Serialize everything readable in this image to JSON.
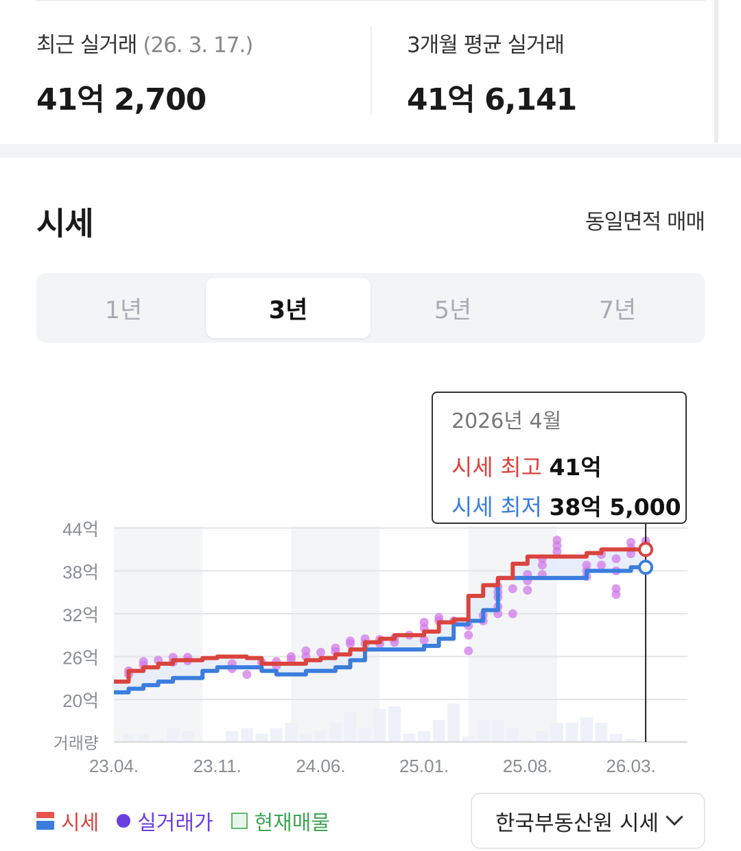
{
  "summary": {
    "recent": {
      "label": "최근 실거래",
      "date": "(26. 3. 17.)",
      "value": "41억 2,700"
    },
    "avg3m": {
      "label": "3개월 평균 실거래",
      "value": "41억 6,141"
    }
  },
  "section": {
    "title": "시세",
    "filter": "동일면적 매매"
  },
  "period_tabs": [
    {
      "label": "1년",
      "active": false
    },
    {
      "label": "3년",
      "active": true
    },
    {
      "label": "5년",
      "active": false
    },
    {
      "label": "7년",
      "active": false
    }
  ],
  "tooltip": {
    "date": "2026년 4월",
    "high_label": "시세 최고",
    "high_value": "41억",
    "low_label": "시세 최저",
    "low_value": "38억 5,000"
  },
  "legend": {
    "price": "시세",
    "trade": "실거래가",
    "listing": "현재매물"
  },
  "source_select": {
    "label": "한국부동산원 시세"
  },
  "colors": {
    "high": "#d9443e",
    "low": "#3b7ddd",
    "trade": "#d27ae8",
    "band": "#e4ecf9",
    "volume": "#eef1f8"
  },
  "chart_data": {
    "type": "line",
    "ylabels": [
      "44억",
      "38억",
      "32억",
      "26억",
      "20억"
    ],
    "y_ticks": [
      44,
      38,
      32,
      26,
      20
    ],
    "ylim": [
      20,
      44
    ],
    "volume_label": "거래량",
    "xlabels": [
      "23.04.",
      "23.11.",
      "24.06.",
      "25.01.",
      "25.08.",
      "26.03."
    ],
    "x_ticks": [
      "2023-04",
      "2023-11",
      "2024-06",
      "2025-01",
      "2025-08",
      "2026-03"
    ],
    "months": [
      "2023-04",
      "2023-05",
      "2023-06",
      "2023-07",
      "2023-08",
      "2023-09",
      "2023-10",
      "2023-11",
      "2023-12",
      "2024-01",
      "2024-02",
      "2024-03",
      "2024-04",
      "2024-05",
      "2024-06",
      "2024-07",
      "2024-08",
      "2024-09",
      "2024-10",
      "2024-11",
      "2024-12",
      "2025-01",
      "2025-02",
      "2025-03",
      "2025-04",
      "2025-05",
      "2025-06",
      "2025-07",
      "2025-08",
      "2025-09",
      "2025-10",
      "2025-11",
      "2025-12",
      "2026-01",
      "2026-02",
      "2026-03",
      "2026-04"
    ],
    "series": [
      {
        "name": "시세 최고",
        "values": [
          22.5,
          24,
          24.5,
          25,
          25.5,
          25.5,
          25.8,
          26,
          26,
          25.8,
          25,
          25,
          25,
          25.5,
          25.8,
          26.3,
          27,
          28,
          28.5,
          29,
          29,
          29.5,
          30.8,
          31.2,
          34.5,
          36,
          37,
          39,
          40,
          40,
          40,
          40,
          40.5,
          41,
          41,
          41,
          41
        ]
      },
      {
        "name": "시세 최저",
        "values": [
          21,
          21.5,
          22,
          22.5,
          23,
          23,
          24,
          24.5,
          24.5,
          24.5,
          24,
          23.5,
          23.5,
          24,
          24,
          24.5,
          25.5,
          27,
          27,
          27,
          27,
          27.5,
          28.5,
          30.5,
          31,
          32.5,
          37,
          37,
          37,
          37,
          37,
          37,
          38,
          38,
          38,
          38.5,
          38.5
        ]
      }
    ],
    "trades": [
      {
        "x": "2023-05",
        "y": 24
      },
      {
        "x": "2023-05",
        "y": 23.5
      },
      {
        "x": "2023-06",
        "y": 25.3
      },
      {
        "x": "2023-06",
        "y": 24.8
      },
      {
        "x": "2023-07",
        "y": 25.5
      },
      {
        "x": "2023-08",
        "y": 25.9
      },
      {
        "x": "2023-08",
        "y": 25.2
      },
      {
        "x": "2023-09",
        "y": 25.4
      },
      {
        "x": "2023-09",
        "y": 25.9
      },
      {
        "x": "2023-12",
        "y": 25
      },
      {
        "x": "2023-12",
        "y": 24.3
      },
      {
        "x": "2024-01",
        "y": 23.5
      },
      {
        "x": "2024-02",
        "y": 25.2
      },
      {
        "x": "2024-03",
        "y": 24.7
      },
      {
        "x": "2024-03",
        "y": 25.3
      },
      {
        "x": "2024-04",
        "y": 25.6
      },
      {
        "x": "2024-04",
        "y": 26
      },
      {
        "x": "2024-05",
        "y": 26.8
      },
      {
        "x": "2024-05",
        "y": 26
      },
      {
        "x": "2024-06",
        "y": 26.6
      },
      {
        "x": "2024-07",
        "y": 27.2
      },
      {
        "x": "2024-07",
        "y": 26.7
      },
      {
        "x": "2024-08",
        "y": 28.2
      },
      {
        "x": "2024-08",
        "y": 27.8
      },
      {
        "x": "2024-09",
        "y": 28.5
      },
      {
        "x": "2024-09",
        "y": 27.8
      },
      {
        "x": "2024-10",
        "y": 28.4
      },
      {
        "x": "2024-10",
        "y": 27.8
      },
      {
        "x": "2024-11",
        "y": 28.6
      },
      {
        "x": "2024-11",
        "y": 28
      },
      {
        "x": "2024-12",
        "y": 29
      },
      {
        "x": "2025-01",
        "y": 30.8
      },
      {
        "x": "2025-01",
        "y": 30
      },
      {
        "x": "2025-01",
        "y": 28.3
      },
      {
        "x": "2025-02",
        "y": 31.5
      },
      {
        "x": "2025-02",
        "y": 31
      },
      {
        "x": "2025-03",
        "y": 31
      },
      {
        "x": "2025-04",
        "y": 30.3
      },
      {
        "x": "2025-04",
        "y": 29
      },
      {
        "x": "2025-04",
        "y": 26.8
      },
      {
        "x": "2025-05",
        "y": 31.8
      },
      {
        "x": "2025-05",
        "y": 31
      },
      {
        "x": "2025-06",
        "y": 35.8
      },
      {
        "x": "2025-06",
        "y": 35
      },
      {
        "x": "2025-06",
        "y": 34.3
      },
      {
        "x": "2025-06",
        "y": 33
      },
      {
        "x": "2025-06",
        "y": 32
      },
      {
        "x": "2025-07",
        "y": 35.5
      },
      {
        "x": "2025-07",
        "y": 32
      },
      {
        "x": "2025-08",
        "y": 37.5
      },
      {
        "x": "2025-08",
        "y": 36.6
      },
      {
        "x": "2025-08",
        "y": 35.3
      },
      {
        "x": "2025-09",
        "y": 39.7
      },
      {
        "x": "2025-09",
        "y": 38.8
      },
      {
        "x": "2025-09",
        "y": 37.5
      },
      {
        "x": "2025-10",
        "y": 42.3
      },
      {
        "x": "2025-10",
        "y": 41.5
      },
      {
        "x": "2025-10",
        "y": 40.7
      },
      {
        "x": "2025-12",
        "y": 38.8
      },
      {
        "x": "2025-12",
        "y": 38
      },
      {
        "x": "2025-12",
        "y": 37.2
      },
      {
        "x": "2026-01",
        "y": 40.3
      },
      {
        "x": "2026-01",
        "y": 38.8
      },
      {
        "x": "2026-02",
        "y": 39.7
      },
      {
        "x": "2026-02",
        "y": 38
      },
      {
        "x": "2026-02",
        "y": 35.5
      },
      {
        "x": "2026-02",
        "y": 34.7
      },
      {
        "x": "2026-03",
        "y": 42
      },
      {
        "x": "2026-03",
        "y": 41.2
      },
      {
        "x": "2026-03",
        "y": 40.4
      },
      {
        "x": "2026-04",
        "y": 42.2
      },
      {
        "x": "2026-04",
        "y": 41.7
      }
    ],
    "volume": [
      0,
      3,
      3,
      1,
      5,
      4,
      0,
      0,
      4,
      5,
      3,
      5,
      7,
      3,
      4,
      7,
      11,
      5,
      12,
      13,
      3,
      4,
      8,
      14,
      2,
      8,
      8,
      5,
      1,
      4,
      7,
      7,
      9,
      7,
      3,
      1,
      0
    ],
    "selected": "2026-04"
  }
}
